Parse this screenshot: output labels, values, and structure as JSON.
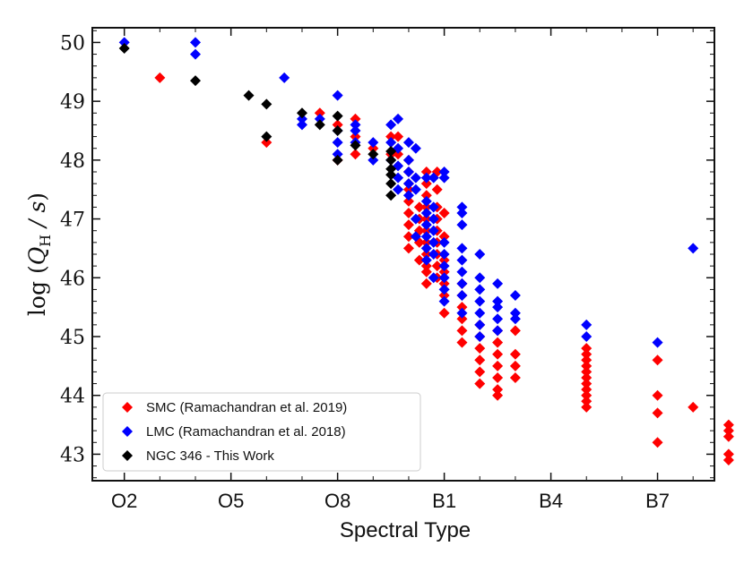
{
  "chart_data": {
    "type": "scatter",
    "title": "",
    "xlabel": "Spectral Type",
    "ylabel": "log (Q_H / s)",
    "ylabel_parts": {
      "log": "log",
      "q": "Q",
      "sub": "H",
      "rest": " / s"
    },
    "xlim": [
      1.1,
      18.6
    ],
    "ylim": [
      42.55,
      50.25
    ],
    "x_ticks": [
      {
        "value": 2,
        "label": "O2"
      },
      {
        "value": 5,
        "label": "O5"
      },
      {
        "value": 8,
        "label": "O8"
      },
      {
        "value": 11,
        "label": "B1"
      },
      {
        "value": 14,
        "label": "B4"
      },
      {
        "value": 17,
        "label": "B7"
      }
    ],
    "y_ticks": [
      {
        "value": 43,
        "label": "43"
      },
      {
        "value": 44,
        "label": "44"
      },
      {
        "value": 45,
        "label": "45"
      },
      {
        "value": 46,
        "label": "46"
      },
      {
        "value": 47,
        "label": "47"
      },
      {
        "value": 48,
        "label": "48"
      },
      {
        "value": 49,
        "label": "49"
      },
      {
        "value": 50,
        "label": "50"
      }
    ],
    "legend_position": "lower-left",
    "series": [
      {
        "name": "SMC (Ramachandran et al. 2019)",
        "color": "#ff0000",
        "points": [
          [
            3.0,
            49.4
          ],
          [
            6.0,
            48.3
          ],
          [
            7.5,
            48.8
          ],
          [
            8.0,
            48.0
          ],
          [
            8.0,
            48.6
          ],
          [
            8.5,
            48.7
          ],
          [
            8.5,
            48.4
          ],
          [
            8.5,
            48.1
          ],
          [
            9.0,
            48.2
          ],
          [
            9.5,
            48.1
          ],
          [
            9.5,
            48.4
          ],
          [
            9.7,
            48.4
          ],
          [
            9.7,
            48.1
          ],
          [
            10.0,
            48.0
          ],
          [
            10.0,
            47.8
          ],
          [
            10.0,
            47.6
          ],
          [
            10.0,
            47.5
          ],
          [
            10.0,
            47.3
          ],
          [
            10.0,
            47.1
          ],
          [
            10.0,
            46.9
          ],
          [
            10.0,
            46.7
          ],
          [
            10.0,
            46.5
          ],
          [
            10.3,
            47.2
          ],
          [
            10.3,
            47.0
          ],
          [
            10.3,
            46.8
          ],
          [
            10.3,
            46.6
          ],
          [
            10.3,
            46.3
          ],
          [
            10.5,
            47.8
          ],
          [
            10.5,
            47.6
          ],
          [
            10.5,
            47.4
          ],
          [
            10.5,
            47.2
          ],
          [
            10.5,
            47.0
          ],
          [
            10.5,
            46.8
          ],
          [
            10.5,
            46.6
          ],
          [
            10.5,
            46.4
          ],
          [
            10.5,
            46.2
          ],
          [
            10.5,
            46.1
          ],
          [
            10.5,
            45.9
          ],
          [
            10.8,
            47.8
          ],
          [
            10.8,
            47.5
          ],
          [
            10.8,
            47.2
          ],
          [
            10.8,
            47.0
          ],
          [
            10.8,
            46.8
          ],
          [
            10.8,
            46.6
          ],
          [
            10.8,
            46.4
          ],
          [
            10.8,
            46.2
          ],
          [
            10.8,
            46.0
          ],
          [
            11.0,
            47.1
          ],
          [
            11.0,
            46.7
          ],
          [
            11.0,
            46.3
          ],
          [
            11.0,
            46.1
          ],
          [
            11.0,
            45.9
          ],
          [
            11.0,
            45.7
          ],
          [
            11.0,
            45.4
          ],
          [
            11.5,
            45.9
          ],
          [
            11.5,
            45.7
          ],
          [
            11.5,
            45.5
          ],
          [
            11.5,
            45.3
          ],
          [
            11.5,
            45.1
          ],
          [
            11.5,
            44.9
          ],
          [
            12.0,
            45.2
          ],
          [
            12.0,
            45.0
          ],
          [
            12.0,
            44.8
          ],
          [
            12.0,
            44.6
          ],
          [
            12.0,
            44.4
          ],
          [
            12.0,
            44.2
          ],
          [
            12.5,
            45.1
          ],
          [
            12.5,
            44.9
          ],
          [
            12.5,
            44.7
          ],
          [
            12.5,
            44.5
          ],
          [
            12.5,
            44.3
          ],
          [
            12.5,
            44.1
          ],
          [
            12.5,
            44.0
          ],
          [
            13.0,
            45.1
          ],
          [
            13.0,
            44.7
          ],
          [
            13.0,
            44.5
          ],
          [
            13.0,
            44.3
          ],
          [
            15.0,
            44.7
          ],
          [
            15.0,
            44.5
          ],
          [
            15.0,
            44.3
          ],
          [
            15.0,
            44.1
          ],
          [
            15.0,
            43.9
          ],
          [
            15.0,
            43.8
          ],
          [
            15.0,
            44.8
          ],
          [
            15.0,
            44.6
          ],
          [
            15.0,
            44.4
          ],
          [
            15.0,
            44.2
          ],
          [
            15.0,
            44.0
          ],
          [
            17.0,
            44.6
          ],
          [
            17.0,
            44.0
          ],
          [
            17.0,
            43.7
          ],
          [
            17.0,
            43.2
          ],
          [
            18.0,
            43.8
          ],
          [
            19.0,
            43.5
          ],
          [
            19.0,
            43.4
          ],
          [
            19.0,
            43.3
          ],
          [
            19.0,
            43.0
          ],
          [
            19.0,
            42.9
          ]
        ]
      },
      {
        "name": "LMC (Ramachandran et al. 2018)",
        "color": "#0000ff",
        "points": [
          [
            2.0,
            50.0
          ],
          [
            4.0,
            50.0
          ],
          [
            4.0,
            49.8
          ],
          [
            6.5,
            49.4
          ],
          [
            7.0,
            48.7
          ],
          [
            7.0,
            48.6
          ],
          [
            7.5,
            48.7
          ],
          [
            8.0,
            49.1
          ],
          [
            8.0,
            48.5
          ],
          [
            8.0,
            48.3
          ],
          [
            8.0,
            48.1
          ],
          [
            8.5,
            48.6
          ],
          [
            8.5,
            48.5
          ],
          [
            8.5,
            48.3
          ],
          [
            9.0,
            48.3
          ],
          [
            9.0,
            48.0
          ],
          [
            9.5,
            48.0
          ],
          [
            9.5,
            48.3
          ],
          [
            9.5,
            48.6
          ],
          [
            9.7,
            48.7
          ],
          [
            9.7,
            48.2
          ],
          [
            9.7,
            47.9
          ],
          [
            9.7,
            47.7
          ],
          [
            9.7,
            47.5
          ],
          [
            10.0,
            48.3
          ],
          [
            10.0,
            48.0
          ],
          [
            10.0,
            47.8
          ],
          [
            10.0,
            47.6
          ],
          [
            10.0,
            47.4
          ],
          [
            10.2,
            48.2
          ],
          [
            10.2,
            47.7
          ],
          [
            10.2,
            47.5
          ],
          [
            10.2,
            46.7
          ],
          [
            10.2,
            47.0
          ],
          [
            10.5,
            47.7
          ],
          [
            10.5,
            47.3
          ],
          [
            10.5,
            47.1
          ],
          [
            10.5,
            46.9
          ],
          [
            10.5,
            46.7
          ],
          [
            10.5,
            46.5
          ],
          [
            10.5,
            46.3
          ],
          [
            10.7,
            47.7
          ],
          [
            10.7,
            47.2
          ],
          [
            10.7,
            47.0
          ],
          [
            10.7,
            46.8
          ],
          [
            10.7,
            46.6
          ],
          [
            10.7,
            46.4
          ],
          [
            10.7,
            46.0
          ],
          [
            11.0,
            47.8
          ],
          [
            11.0,
            47.7
          ],
          [
            11.0,
            46.6
          ],
          [
            11.0,
            46.4
          ],
          [
            11.0,
            46.2
          ],
          [
            11.0,
            46.0
          ],
          [
            11.0,
            45.8
          ],
          [
            11.0,
            45.6
          ],
          [
            11.5,
            47.2
          ],
          [
            11.5,
            47.1
          ],
          [
            11.5,
            46.9
          ],
          [
            11.5,
            46.5
          ],
          [
            11.5,
            46.3
          ],
          [
            11.5,
            46.1
          ],
          [
            11.5,
            45.9
          ],
          [
            11.5,
            45.7
          ],
          [
            11.5,
            45.4
          ],
          [
            12.0,
            46.4
          ],
          [
            12.0,
            46.0
          ],
          [
            12.0,
            45.8
          ],
          [
            12.0,
            45.6
          ],
          [
            12.0,
            45.4
          ],
          [
            12.0,
            45.2
          ],
          [
            12.0,
            45.0
          ],
          [
            12.5,
            45.9
          ],
          [
            12.5,
            45.6
          ],
          [
            12.5,
            45.5
          ],
          [
            12.5,
            45.3
          ],
          [
            12.5,
            45.1
          ],
          [
            13.0,
            45.7
          ],
          [
            13.0,
            45.4
          ],
          [
            13.0,
            45.3
          ],
          [
            15.0,
            45.2
          ],
          [
            15.0,
            45.0
          ],
          [
            17.0,
            44.9
          ],
          [
            18.0,
            46.5
          ]
        ]
      },
      {
        "name": "NGC 346 - This Work",
        "color": "#000000",
        "points": [
          [
            2.0,
            49.9
          ],
          [
            4.0,
            49.35
          ],
          [
            5.5,
            49.1
          ],
          [
            6.0,
            48.95
          ],
          [
            6.0,
            48.4
          ],
          [
            7.0,
            48.8
          ],
          [
            7.5,
            48.6
          ],
          [
            8.0,
            48.75
          ],
          [
            8.0,
            48.5
          ],
          [
            8.0,
            48.0
          ],
          [
            8.5,
            48.25
          ],
          [
            9.0,
            48.1
          ],
          [
            9.5,
            48.15
          ],
          [
            9.5,
            48.0
          ],
          [
            9.5,
            47.85
          ],
          [
            9.5,
            47.75
          ],
          [
            9.5,
            47.6
          ],
          [
            9.5,
            47.4
          ]
        ]
      }
    ]
  }
}
